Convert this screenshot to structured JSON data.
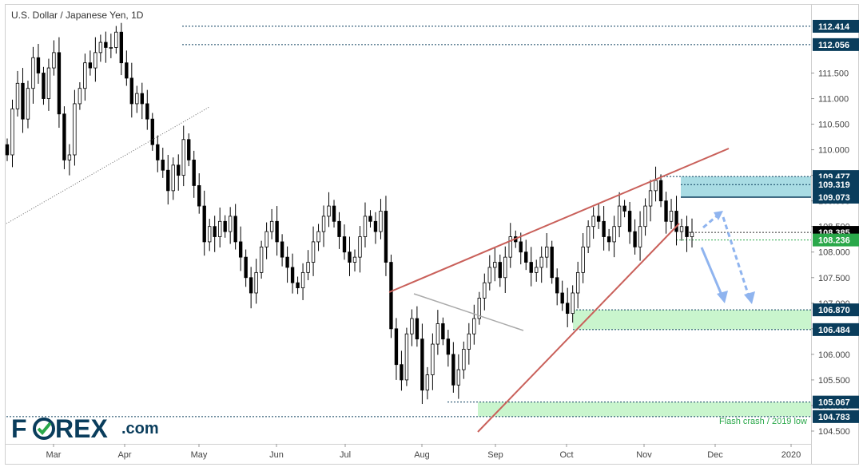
{
  "chart_data": {
    "type": "candlestick",
    "title": "U.S. Dollar / Japanese Yen, 1D",
    "ylim": [
      104.25,
      112.85
    ],
    "y_ticks": [
      104.5,
      105.0,
      105.5,
      106.0,
      106.5,
      107.0,
      107.5,
      108.0,
      108.5,
      109.0,
      109.5,
      110.0,
      110.5,
      111.0,
      111.5
    ],
    "y_tick_labels": [
      "104.500",
      "105.000",
      "105.500",
      "106.000",
      "106.500",
      "107.000",
      "107.500",
      "108.000",
      "108.500",
      "109.000",
      "109.500",
      "110.000",
      "110.500",
      "111.000",
      "111.500"
    ],
    "x_labels": [
      "Mar",
      "Apr",
      "May",
      "Jun",
      "Jul",
      "Aug",
      "Sep",
      "Oct",
      "Nov",
      "Dec",
      "2020"
    ],
    "price_flags": [
      {
        "label": "112.414",
        "value": 112.414,
        "style": "navy"
      },
      {
        "label": "112.056",
        "value": 112.056,
        "style": "navy"
      },
      {
        "label": "109.477",
        "value": 109.477,
        "style": "navy"
      },
      {
        "label": "109.319",
        "value": 109.319,
        "style": "navy"
      },
      {
        "label": "109.073",
        "value": 109.073,
        "style": "navy"
      },
      {
        "label": "108.385",
        "value": 108.385,
        "style": "black"
      },
      {
        "label": "108.236",
        "value": 108.236,
        "style": "green"
      },
      {
        "label": "106.870",
        "value": 106.87,
        "style": "navy"
      },
      {
        "label": "106.484",
        "value": 106.484,
        "style": "navy"
      },
      {
        "label": "105.067",
        "value": 105.067,
        "style": "navy"
      },
      {
        "label": "104.783",
        "value": 104.783,
        "style": "navy"
      }
    ],
    "zones": [
      {
        "name": "resistance",
        "from": 109.073,
        "to": 109.477,
        "color": "#a9dce4"
      },
      {
        "name": "support",
        "from": 106.484,
        "to": 106.87,
        "color": "#c9f5cd"
      },
      {
        "name": "flash-crash",
        "from": 104.783,
        "to": 105.067,
        "color": "#c9f5cd"
      }
    ],
    "annotation": "Flash crash / 2019 low",
    "closes": [
      109.9,
      110.8,
      111.3,
      110.6,
      111.2,
      111.8,
      111.5,
      111.0,
      111.6,
      111.9,
      110.7,
      109.8,
      109.9,
      110.9,
      111.2,
      111.7,
      111.6,
      111.9,
      112.1,
      112.0,
      112.0,
      112.3,
      111.7,
      111.4,
      110.9,
      111.1,
      110.9,
      110.6,
      110.1,
      109.8,
      109.6,
      109.2,
      109.7,
      109.5,
      110.2,
      109.8,
      109.3,
      108.9,
      108.2,
      108.5,
      108.3,
      108.6,
      108.4,
      108.7,
      108.2,
      107.9,
      107.5,
      107.2,
      107.6,
      108.1,
      108.4,
      108.6,
      108.2,
      107.9,
      107.7,
      107.4,
      107.3,
      107.6,
      107.8,
      108.2,
      108.4,
      108.7,
      108.9,
      108.6,
      108.3,
      108.0,
      107.8,
      107.9,
      108.3,
      108.7,
      108.6,
      108.4,
      108.8,
      107.8,
      106.5,
      105.8,
      105.5,
      106.4,
      106.7,
      106.3,
      105.3,
      105.6,
      106.2,
      106.6,
      106.3,
      106.0,
      105.4,
      105.7,
      106.1,
      106.4,
      106.7,
      107.1,
      107.4,
      107.7,
      107.8,
      107.5,
      107.9,
      108.3,
      108.2,
      108.0,
      107.8,
      107.6,
      107.7,
      107.9,
      108.1,
      107.5,
      107.2,
      107.0,
      106.8,
      107.2,
      107.6,
      108.1,
      108.5,
      108.7,
      108.6,
      108.3,
      108.2,
      108.5,
      108.9,
      108.8,
      108.4,
      108.1,
      108.5,
      108.9,
      109.2,
      109.4,
      109.0,
      108.6,
      108.8,
      108.4,
      108.5,
      108.3,
      108.385
    ]
  },
  "brand": {
    "logo_prefix": "F",
    "logo_suffix": "REX",
    "logo_tld": ".com",
    "navy": "#0a3d5c",
    "green": "#2aa84a"
  }
}
